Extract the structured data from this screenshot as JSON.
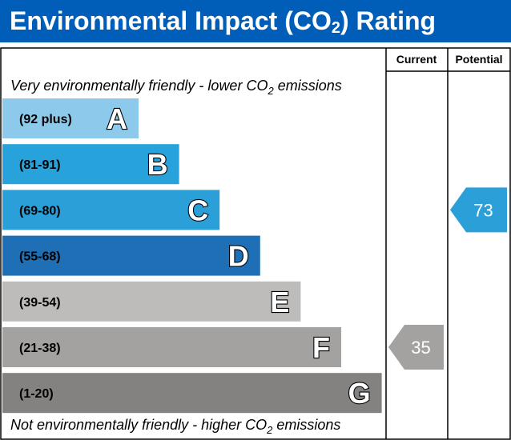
{
  "chart_data": {
    "type": "bar",
    "title_main": "Environmental Impact (CO",
    "title_sub": "2",
    "title_end": ") Rating",
    "columns": {
      "current": "Current",
      "potential": "Potential"
    },
    "top_note": {
      "pre": "Very environmentally friendly - lower CO",
      "sub": "2",
      "post": " emissions"
    },
    "bottom_note": {
      "pre": "Not environmentally friendly - higher CO",
      "sub": "2",
      "post": " emissions"
    },
    "bands": [
      {
        "letter": "A",
        "range": "(92 plus)",
        "color": "#8dc9ea"
      },
      {
        "letter": "B",
        "range": "(81-91)",
        "color": "#27a2db"
      },
      {
        "letter": "C",
        "range": "(69-80)",
        "color": "#2a9fd8"
      },
      {
        "letter": "D",
        "range": "(55-68)",
        "color": "#1f6fb6"
      },
      {
        "letter": "E",
        "range": "(39-54)",
        "color": "#bdbcbb"
      },
      {
        "letter": "F",
        "range": "(21-38)",
        "color": "#a3a2a1"
      },
      {
        "letter": "G",
        "range": "(1-20)",
        "color": "#838281"
      }
    ],
    "current": {
      "value": 35,
      "band": "F",
      "color": "#a3a2a1"
    },
    "potential": {
      "value": 73,
      "band": "C",
      "color": "#2a9fd8"
    }
  }
}
